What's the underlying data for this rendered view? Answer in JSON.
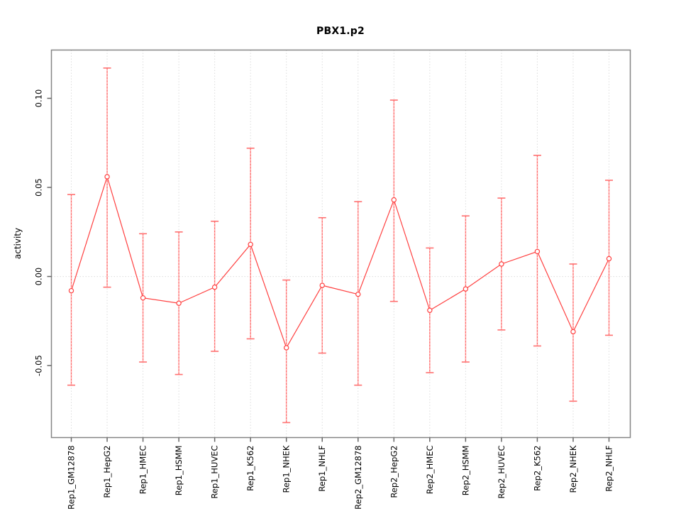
{
  "figure": {
    "background": "#ffffff"
  },
  "chart_data": {
    "type": "line",
    "title": "PBX1.p2",
    "xlabel": "",
    "ylabel": "activity",
    "categories": [
      "Rep1_GM12878",
      "Rep1_HepG2",
      "Rep1_HMEC",
      "Rep1_HSMM",
      "Rep1_HUVEC",
      "Rep1_K562",
      "Rep1_NHEK",
      "Rep1_NHLF",
      "Rep2_GM12878",
      "Rep2_HepG2",
      "Rep2_HMEC",
      "Rep2_HSMM",
      "Rep2_HUVEC",
      "Rep2_K562",
      "Rep2_NHEK",
      "Rep2_NHLF"
    ],
    "series": [
      {
        "name": "mean",
        "values": [
          -0.008,
          0.056,
          -0.012,
          -0.015,
          -0.006,
          0.018,
          -0.04,
          -0.005,
          -0.01,
          0.043,
          -0.019,
          -0.007,
          0.007,
          0.014,
          -0.031,
          0.01
        ]
      },
      {
        "name": "ci_upper",
        "values": [
          0.046,
          0.117,
          0.024,
          0.025,
          0.031,
          0.072,
          -0.002,
          0.033,
          0.042,
          0.099,
          0.016,
          0.034,
          0.044,
          0.068,
          0.007,
          0.054
        ]
      },
      {
        "name": "ci_lower",
        "values": [
          -0.061,
          -0.006,
          -0.048,
          -0.055,
          -0.042,
          -0.035,
          -0.082,
          -0.043,
          -0.061,
          -0.014,
          -0.054,
          -0.048,
          -0.03,
          -0.039,
          -0.07,
          -0.033
        ]
      }
    ],
    "ylim": [
      -0.0904,
      0.1271
    ],
    "yticks": {
      "values": [
        -0.05,
        0,
        0.05,
        0.1
      ],
      "labels": [
        "-0.05",
        "0.00",
        "0.05",
        "0.10"
      ]
    },
    "grid": {
      "vertical": "dotted line at every category",
      "horizontal": "dotted line at y=0",
      "color": "#dcdcdc"
    },
    "legend": "none",
    "colors": {
      "point": "#ff4040",
      "series_line": "#ff4040",
      "error_bar_shaft": "#ffb0b0",
      "error_bar_dash": "#ff5c5c",
      "error_bar_cap": "#ff7070",
      "grid": "#dcdcdc",
      "frame": "#858585",
      "tick": "#666666",
      "text": "#000000"
    }
  }
}
